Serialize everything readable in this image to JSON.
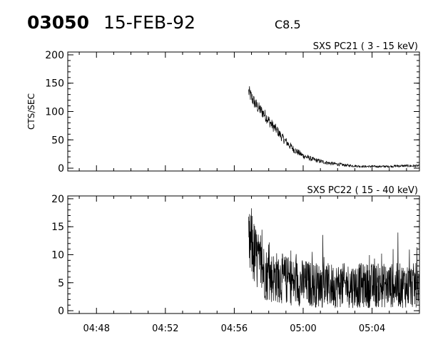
{
  "header": {
    "event_id": "03050",
    "date": "15-FEB-92",
    "flare_class": "C8.5"
  },
  "chart_data": [
    {
      "type": "line",
      "title": "SXS PC21   (  3 - 15 keV)",
      "xlabel": "",
      "ylabel": "CTS/SEC",
      "xlim": [
        "04:46:20",
        "05:06:45"
      ],
      "ylim": [
        -5,
        205
      ],
      "yticks": [
        0,
        50,
        100,
        150,
        200
      ],
      "xticks": [
        "04:48",
        "04:52",
        "04:56",
        "05:00",
        "05:04"
      ],
      "show_x_tick_labels": false,
      "grid": false,
      "series": [
        {
          "x": [
            "04:56:50",
            "04:57:00",
            "04:57:15",
            "04:57:30",
            "04:57:45",
            "04:58:00",
            "04:58:15",
            "04:58:30",
            "04:58:45",
            "04:59:00",
            "04:59:15",
            "04:59:30",
            "04:59:45",
            "05:00:00",
            "05:00:30",
            "05:01:00",
            "05:01:30",
            "05:02:00",
            "05:02:30",
            "05:03:00",
            "05:03:30",
            "05:04:00",
            "05:04:30",
            "05:05:00",
            "05:05:30",
            "05:06:00",
            "05:06:45"
          ],
          "values": [
            135,
            125,
            112,
            103,
            95,
            84,
            74,
            66,
            55,
            47,
            39,
            32,
            27,
            22,
            16,
            12,
            9,
            7,
            5,
            4,
            3,
            3,
            3,
            3,
            4,
            4,
            4
          ]
        }
      ]
    },
    {
      "type": "line",
      "title": "SXS PC22   ( 15 - 40 keV)",
      "xlabel": "",
      "ylabel": "",
      "xlim": [
        "04:46:20",
        "05:06:45"
      ],
      "ylim": [
        -0.5,
        20.5
      ],
      "yticks": [
        0,
        5,
        10,
        15,
        20
      ],
      "xticks": [
        "04:48",
        "04:52",
        "04:56",
        "05:00",
        "05:04"
      ],
      "show_x_tick_labels": true,
      "grid": false,
      "series": [
        {
          "x": [
            "04:56:50",
            "04:57:00",
            "04:57:10",
            "04:57:20",
            "04:57:30",
            "04:57:45",
            "04:58:00",
            "04:58:30",
            "04:59:00",
            "04:59:30",
            "05:00:00",
            "05:01:00",
            "05:02:00",
            "05:03:00",
            "05:04:00",
            "05:05:00",
            "05:06:00",
            "05:06:45"
          ],
          "values": [
            11,
            12,
            10,
            9,
            8,
            7,
            6,
            6,
            5.5,
            5,
            5,
            4.5,
            4.5,
            4.5,
            4.5,
            4.5,
            4.5,
            4.5
          ]
        }
      ]
    }
  ]
}
